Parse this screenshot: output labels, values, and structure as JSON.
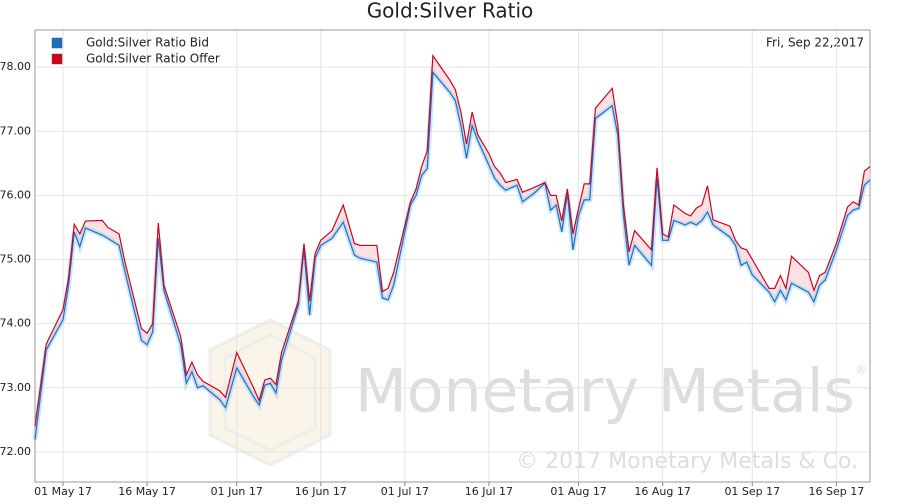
{
  "chart_data": {
    "type": "line",
    "title": "Gold:Silver Ratio",
    "date_label": "Fri, Sep 22,2017",
    "watermark": "Monetary Metals",
    "watermark_mark": "®",
    "copyright": "© 2017 Monetary Metals & Co.",
    "x": [
      "2017-04-26",
      "2017-04-28",
      "2017-05-01",
      "2017-05-02",
      "2017-05-03",
      "2017-05-04",
      "2017-05-05",
      "2017-05-08",
      "2017-05-09",
      "2017-05-11",
      "2017-05-12",
      "2017-05-15",
      "2017-05-16",
      "2017-05-17",
      "2017-05-18",
      "2017-05-19",
      "2017-05-22",
      "2017-05-23",
      "2017-05-24",
      "2017-05-25",
      "2017-05-26",
      "2017-05-29",
      "2017-05-30",
      "2017-06-01",
      "2017-06-04",
      "2017-06-05",
      "2017-06-06",
      "2017-06-07",
      "2017-06-08",
      "2017-06-09",
      "2017-06-12",
      "2017-06-13",
      "2017-06-14",
      "2017-06-15",
      "2017-06-16",
      "2017-06-18",
      "2017-06-20",
      "2017-06-22",
      "2017-06-23",
      "2017-06-26",
      "2017-06-27",
      "2017-06-28",
      "2017-06-29",
      "2017-07-02",
      "2017-07-03",
      "2017-07-04",
      "2017-07-05",
      "2017-07-06",
      "2017-07-09",
      "2017-07-10",
      "2017-07-11",
      "2017-07-12",
      "2017-07-13",
      "2017-07-14",
      "2017-07-16",
      "2017-07-17",
      "2017-07-18",
      "2017-07-19",
      "2017-07-21",
      "2017-07-22",
      "2017-07-24",
      "2017-07-26",
      "2017-07-27",
      "2017-07-28",
      "2017-07-29",
      "2017-07-30",
      "2017-07-31",
      "2017-08-01",
      "2017-08-02",
      "2017-08-03",
      "2017-08-04",
      "2017-08-07",
      "2017-08-08",
      "2017-08-09",
      "2017-08-10",
      "2017-08-11",
      "2017-08-14",
      "2017-08-15",
      "2017-08-16",
      "2017-08-17",
      "2017-08-18",
      "2017-08-20",
      "2017-08-21",
      "2017-08-22",
      "2017-08-23",
      "2017-08-24",
      "2017-08-25",
      "2017-08-28",
      "2017-08-29",
      "2017-08-30",
      "2017-08-31",
      "2017-09-01",
      "2017-09-04",
      "2017-09-05",
      "2017-09-06",
      "2017-09-07",
      "2017-09-08",
      "2017-09-11",
      "2017-09-12",
      "2017-09-13",
      "2017-09-14",
      "2017-09-16",
      "2017-09-18",
      "2017-09-19",
      "2017-09-20",
      "2017-09-21",
      "2017-09-22"
    ],
    "series": [
      {
        "name": "Gold:Silver Ratio Bid",
        "color": "#1f6fc0",
        "values": [
          72.19,
          73.59,
          74.06,
          74.6,
          75.43,
          75.2,
          75.49,
          75.38,
          75.33,
          75.22,
          74.83,
          73.74,
          73.67,
          73.87,
          75.33,
          74.52,
          73.67,
          73.07,
          73.25,
          73.0,
          73.03,
          72.81,
          72.69,
          73.31,
          72.86,
          72.73,
          73.04,
          73.07,
          72.92,
          73.43,
          74.29,
          75.15,
          74.13,
          75.02,
          75.22,
          75.33,
          75.58,
          75.07,
          75.02,
          74.96,
          74.4,
          74.37,
          74.6,
          75.85,
          76.0,
          76.31,
          76.42,
          77.92,
          77.61,
          77.48,
          77.09,
          76.58,
          77.09,
          76.86,
          76.47,
          76.27,
          76.16,
          76.08,
          76.16,
          75.9,
          76.03,
          76.19,
          75.77,
          75.85,
          75.43,
          76.03,
          75.15,
          75.69,
          75.93,
          75.93,
          77.2,
          77.4,
          76.94,
          75.69,
          74.91,
          75.22,
          74.91,
          76.27,
          75.3,
          75.3,
          75.61,
          75.54,
          75.58,
          75.54,
          75.61,
          75.74,
          75.54,
          75.35,
          75.22,
          74.91,
          74.96,
          74.76,
          74.49,
          74.34,
          74.52,
          74.37,
          74.63,
          74.49,
          74.34,
          74.6,
          74.68,
          75.15,
          75.69,
          75.77,
          75.8,
          76.16,
          76.24
        ]
      },
      {
        "name": "Gold:Silver Ratio Offer",
        "color": "#d0021b",
        "values": [
          72.4,
          73.68,
          74.22,
          74.72,
          75.55,
          75.4,
          75.6,
          75.61,
          75.5,
          75.4,
          74.98,
          73.92,
          73.85,
          74.0,
          75.57,
          74.6,
          73.8,
          73.2,
          73.4,
          73.2,
          73.1,
          72.95,
          72.85,
          73.55,
          73.0,
          72.8,
          73.12,
          73.15,
          73.05,
          73.55,
          74.35,
          75.25,
          74.35,
          75.1,
          75.3,
          75.45,
          75.85,
          75.25,
          75.22,
          75.22,
          74.5,
          74.55,
          74.8,
          75.9,
          76.1,
          76.45,
          76.7,
          78.18,
          77.8,
          77.65,
          77.3,
          76.8,
          77.3,
          76.95,
          76.65,
          76.45,
          76.35,
          76.2,
          76.25,
          76.05,
          76.12,
          76.2,
          76.0,
          76.0,
          75.6,
          76.1,
          75.4,
          75.8,
          76.18,
          76.18,
          77.36,
          77.67,
          77.1,
          75.85,
          75.12,
          75.45,
          75.15,
          76.43,
          75.4,
          75.35,
          75.85,
          75.72,
          75.68,
          75.8,
          75.85,
          76.15,
          75.62,
          75.52,
          75.3,
          75.18,
          75.15,
          75.0,
          74.55,
          74.55,
          74.75,
          74.55,
          75.05,
          74.8,
          74.52,
          74.75,
          74.8,
          75.25,
          75.82,
          75.9,
          75.85,
          76.38,
          76.45
        ]
      }
    ],
    "xlim": [
      "2017-04-26",
      "2017-09-22"
    ],
    "xticks": [
      {
        "value": "2017-05-01",
        "label": "01 May 17"
      },
      {
        "value": "2017-05-16",
        "label": "16 May 17"
      },
      {
        "value": "2017-06-01",
        "label": "01 Jun 17"
      },
      {
        "value": "2017-06-16",
        "label": "16 Jun 17"
      },
      {
        "value": "2017-07-01",
        "label": "01 Jul 17"
      },
      {
        "value": "2017-07-16",
        "label": "16 Jul 17"
      },
      {
        "value": "2017-08-01",
        "label": "01 Aug 17"
      },
      {
        "value": "2017-08-16",
        "label": "16 Aug 17"
      },
      {
        "value": "2017-09-01",
        "label": "01 Sep 17"
      },
      {
        "value": "2017-09-16",
        "label": "16 Sep 17"
      }
    ],
    "ylim": [
      71.53,
      78.58
    ],
    "yticks": [
      {
        "value": 72,
        "label": "72.00"
      },
      {
        "value": 73,
        "label": "73.00"
      },
      {
        "value": 74,
        "label": "74.00"
      },
      {
        "value": 75,
        "label": "75.00"
      },
      {
        "value": 76,
        "label": "76.00"
      },
      {
        "value": 77,
        "label": "77.00"
      },
      {
        "value": 78,
        "label": "78.00"
      }
    ],
    "grid": true,
    "legend": "top-left"
  }
}
